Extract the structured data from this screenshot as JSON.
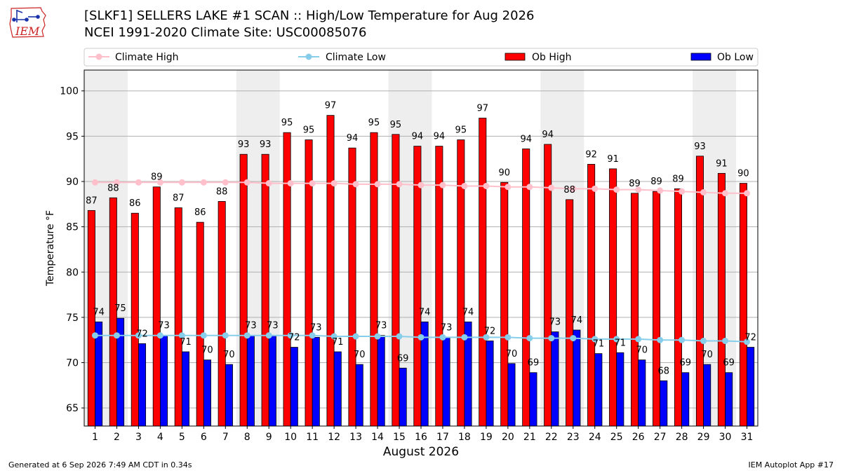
{
  "header": {
    "title": "[SLKF1] SELLERS LAKE #1 SCAN :: High/Low Temperature for Aug 2026",
    "subtitle": "NCEI 1991-2020 Climate Site: USC00085076",
    "logo_text": "IEM"
  },
  "footer": {
    "generated": "Generated at 6 Sep 2026 7:49 AM CDT in 0.34s",
    "app": "IEM Autoplot App #17"
  },
  "colors": {
    "ob_high": "#ff0000",
    "ob_low": "#0000ff",
    "climate_high": "#ffc0cb",
    "climate_low": "#87ceeb",
    "weekend_shade": "#eeeeee",
    "grid": "#b0b0b0",
    "logo_red": "#cc2222",
    "logo_blue": "#1a33aa"
  },
  "chart_data": {
    "type": "bar",
    "xlabel": "August 2026",
    "ylabel": "Temperature °F",
    "ylim": [
      63,
      102.3
    ],
    "yticks": [
      65,
      70,
      75,
      80,
      85,
      90,
      95,
      100
    ],
    "grid": true,
    "legend_position": "top",
    "categories": [
      "1",
      "2",
      "3",
      "4",
      "5",
      "6",
      "7",
      "8",
      "9",
      "10",
      "11",
      "12",
      "13",
      "14",
      "15",
      "16",
      "17",
      "18",
      "19",
      "20",
      "21",
      "22",
      "23",
      "24",
      "25",
      "26",
      "27",
      "28",
      "29",
      "30",
      "31"
    ],
    "shaded_weekend_ranges": [
      [
        1,
        2
      ],
      [
        8,
        9
      ],
      [
        15,
        16
      ],
      [
        22,
        23
      ],
      [
        29,
        30
      ]
    ],
    "series": [
      {
        "name": "Ob High",
        "kind": "bar",
        "values": [
          86.8,
          88.2,
          86.5,
          89.4,
          87.1,
          85.5,
          87.8,
          93.0,
          93.0,
          95.4,
          94.6,
          97.3,
          93.7,
          95.4,
          95.2,
          93.9,
          93.9,
          94.6,
          97.0,
          89.9,
          93.6,
          94.1,
          88.0,
          91.9,
          91.4,
          88.7,
          88.9,
          89.2,
          92.8,
          90.9,
          89.8
        ],
        "labels": [
          "87",
          "88",
          "86",
          "89",
          "87",
          "86",
          "88",
          "93",
          "93",
          "95",
          "95",
          "97",
          "94",
          "95",
          "95",
          "94",
          "94",
          "95",
          "97",
          "90",
          "94",
          "94",
          "88",
          "92",
          "91",
          "89",
          "89",
          "89",
          "93",
          "91",
          "90"
        ]
      },
      {
        "name": "Ob Low",
        "kind": "bar",
        "values": [
          74.5,
          74.9,
          72.1,
          73.0,
          71.2,
          70.3,
          69.8,
          73.0,
          73.0,
          71.7,
          72.8,
          71.2,
          69.8,
          73.0,
          69.4,
          74.5,
          72.8,
          74.5,
          72.4,
          69.9,
          68.9,
          73.4,
          73.6,
          71.0,
          71.1,
          70.3,
          68.0,
          68.9,
          69.8,
          68.9,
          71.7
        ],
        "labels": [
          "74",
          "75",
          "72",
          "73",
          "71",
          "70",
          "70",
          "73",
          "73",
          "72",
          "73",
          "71",
          "70",
          "73",
          "69",
          "74",
          "73",
          "74",
          "72",
          "70",
          "69",
          "73",
          "74",
          "71",
          "71",
          "70",
          "68",
          "69",
          "70",
          "69",
          "72"
        ]
      },
      {
        "name": "Climate High",
        "kind": "line",
        "values": [
          89.9,
          89.9,
          89.9,
          89.9,
          89.9,
          89.9,
          89.9,
          89.9,
          89.8,
          89.8,
          89.8,
          89.8,
          89.7,
          89.7,
          89.7,
          89.6,
          89.6,
          89.5,
          89.5,
          89.4,
          89.4,
          89.3,
          89.2,
          89.2,
          89.1,
          89.1,
          89.0,
          88.9,
          88.8,
          88.7,
          88.7
        ]
      },
      {
        "name": "Climate Low",
        "kind": "line",
        "values": [
          73.0,
          73.0,
          73.0,
          73.0,
          73.0,
          73.0,
          73.0,
          73.0,
          73.0,
          73.0,
          73.0,
          72.9,
          72.9,
          72.9,
          72.9,
          72.8,
          72.8,
          72.8,
          72.8,
          72.8,
          72.7,
          72.7,
          72.7,
          72.6,
          72.6,
          72.6,
          72.5,
          72.5,
          72.4,
          72.4,
          72.3
        ]
      }
    ]
  }
}
